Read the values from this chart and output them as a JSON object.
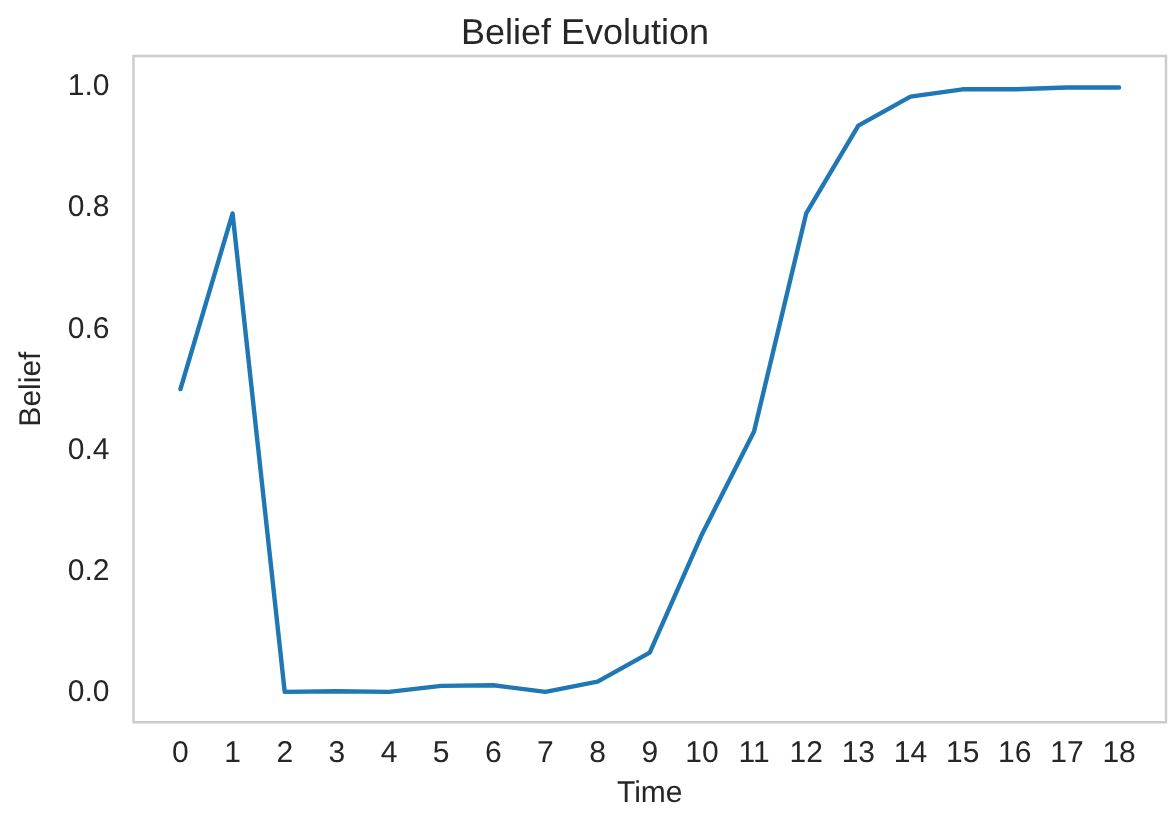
{
  "chart_data": {
    "type": "line",
    "title": "Belief Evolution",
    "xlabel": "Time",
    "ylabel": "Belief",
    "x": [
      0,
      1,
      2,
      3,
      4,
      5,
      6,
      7,
      8,
      9,
      10,
      11,
      12,
      13,
      14,
      15,
      16,
      17,
      18
    ],
    "series": [
      {
        "color": "#1f77b4",
        "values": [
          0.5,
          0.79,
          0.0,
          0.001,
          0.0,
          0.01,
          0.011,
          0.0,
          0.017,
          0.065,
          0.26,
          0.43,
          0.79,
          0.935,
          0.983,
          0.995,
          0.995,
          0.998,
          0.998
        ]
      }
    ],
    "xlim": [
      -0.9,
      18.9
    ],
    "xticks": [
      0,
      1,
      2,
      3,
      4,
      5,
      6,
      7,
      8,
      9,
      10,
      11,
      12,
      13,
      14,
      15,
      16,
      17,
      18
    ],
    "ylim": [
      -0.05,
      1.05
    ],
    "yticks": [
      {
        "value": 0,
        "label": "0.0"
      },
      {
        "value": 0.2,
        "label": "0.2"
      },
      {
        "value": 0.4,
        "label": "0.4"
      },
      {
        "value": 0.6,
        "label": "0.6"
      },
      {
        "value": 0.8,
        "label": "0.8"
      },
      {
        "value": 1,
        "label": "1.0"
      }
    ],
    "grid": false,
    "marker": "none",
    "line_style": "solid"
  }
}
